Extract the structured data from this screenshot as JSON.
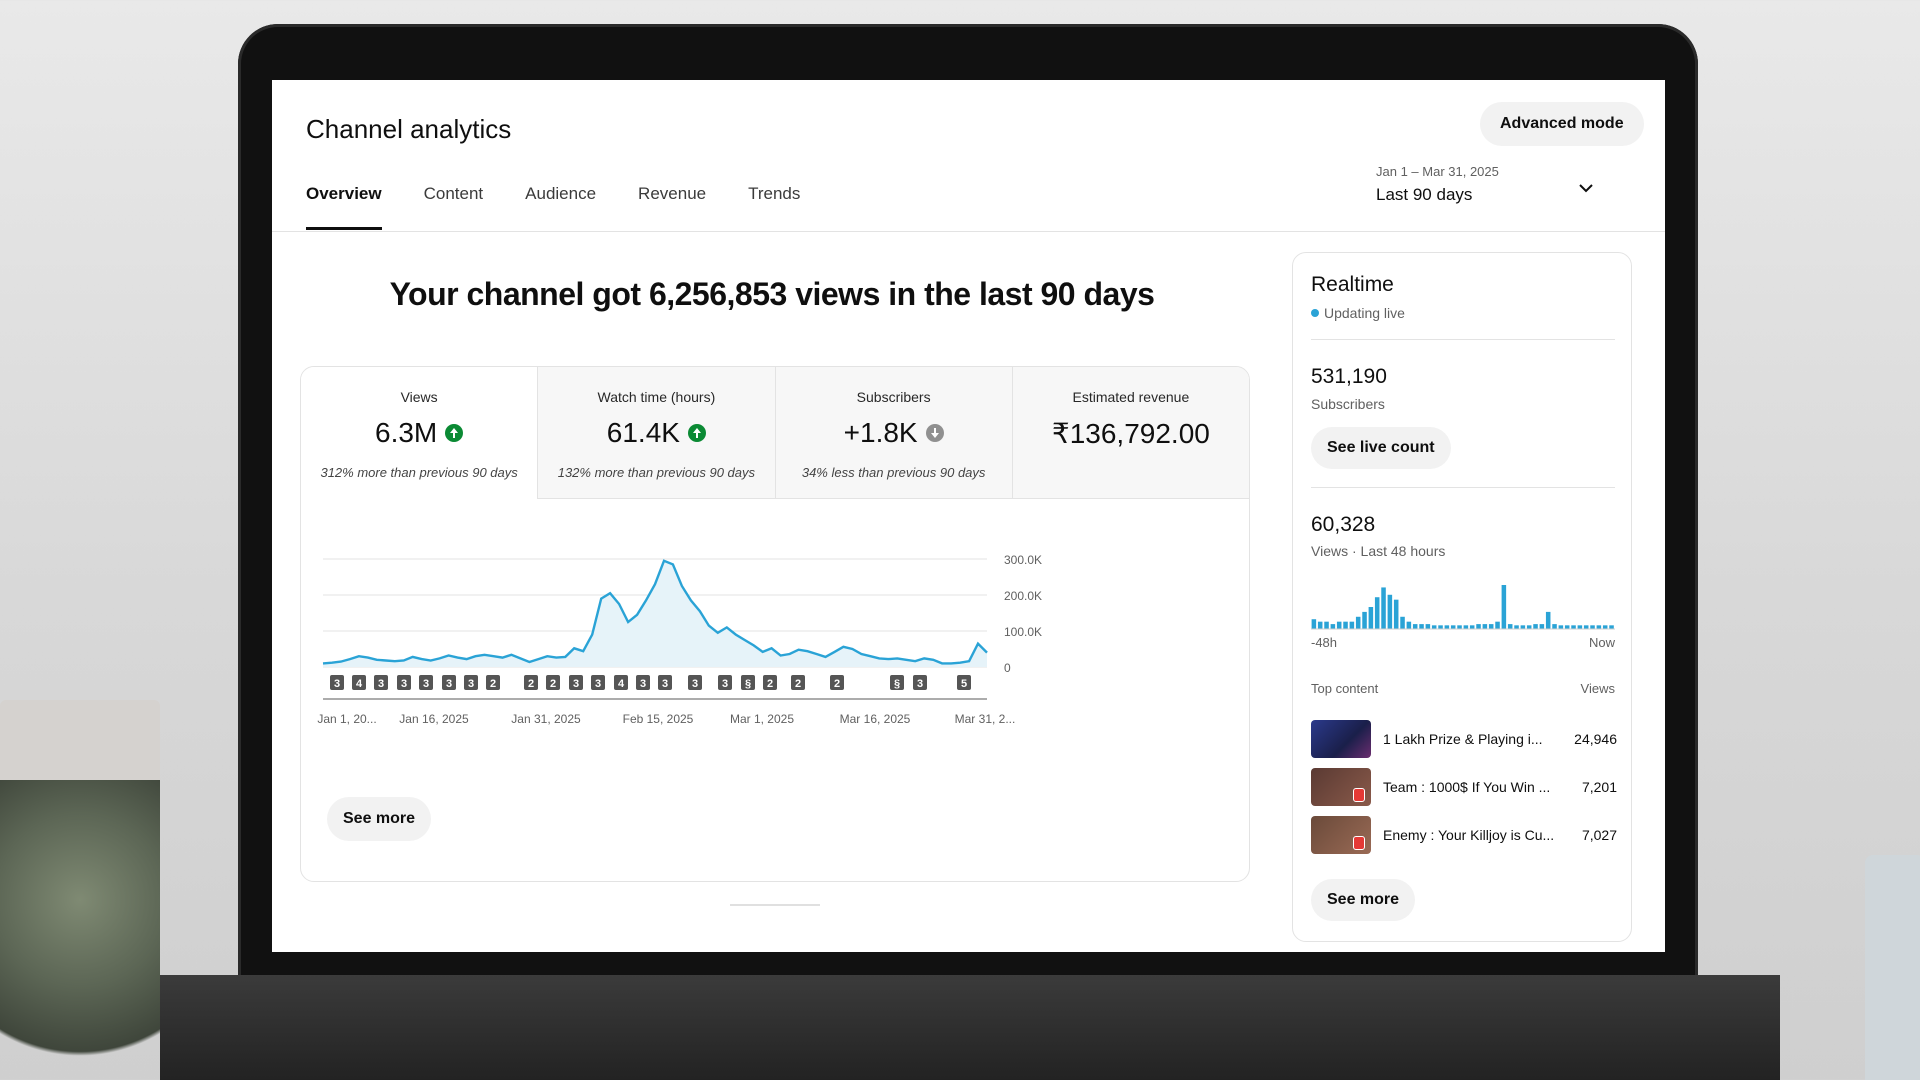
{
  "header": {
    "title": "Channel analytics",
    "advanced_mode": "Advanced mode",
    "tabs": [
      {
        "label": "Overview",
        "active": true
      },
      {
        "label": "Content",
        "active": false
      },
      {
        "label": "Audience",
        "active": false
      },
      {
        "label": "Revenue",
        "active": false
      },
      {
        "label": "Trends",
        "active": false
      }
    ],
    "date_range": "Jan 1 – Mar 31, 2025",
    "date_label": "Last 90 days"
  },
  "main": {
    "headline": "Your channel got 6,256,853 views in the last 90 days",
    "metrics": [
      {
        "label": "Views",
        "value": "6.3M",
        "trend": "up",
        "note": "312% more than previous 90 days"
      },
      {
        "label": "Watch time (hours)",
        "value": "61.4K",
        "trend": "up",
        "note": "132% more than previous 90 days"
      },
      {
        "label": "Subscribers",
        "value": "+1.8K",
        "trend": "down",
        "note": "34% less than previous 90 days"
      },
      {
        "label": "Estimated revenue",
        "value": "₹136,792.00",
        "trend": "",
        "note": ""
      }
    ],
    "see_more": "See more"
  },
  "chart_data": {
    "type": "area",
    "title": "",
    "xlabel": "",
    "ylabel": "",
    "ylim": [
      0,
      300000
    ],
    "yticks": [
      "300.0K",
      "200.0K",
      "100.0K",
      "0"
    ],
    "yticks_values": [
      300000,
      200000,
      100000,
      0
    ],
    "xtick_labels": [
      "Jan 1, 20...",
      "Jan 16, 2025",
      "Jan 31, 2025",
      "Feb 15, 2025",
      "Mar 1, 2025",
      "Mar 16, 2025",
      "Mar 31, 2..."
    ],
    "series": [
      {
        "values": [
          10000,
          12000,
          15000,
          22000,
          30000,
          26000,
          20000,
          18000,
          16000,
          18000,
          28000,
          22000,
          18000,
          24000,
          32000,
          26000,
          22000,
          30000,
          34000,
          30000,
          26000,
          34000,
          24000,
          14000,
          22000,
          30000,
          26000,
          28000,
          52000,
          44000,
          90000,
          190000,
          205000,
          175000,
          125000,
          145000,
          185000,
          230000,
          295000,
          285000,
          225000,
          185000,
          155000,
          115000,
          95000,
          110000,
          90000,
          75000,
          60000,
          42000,
          52000,
          32000,
          36000,
          48000,
          44000,
          36000,
          28000,
          42000,
          56000,
          50000,
          36000,
          30000,
          24000,
          22000,
          24000,
          20000,
          16000,
          24000,
          20000,
          10000,
          10000,
          12000,
          16000,
          65000,
          40000
        ]
      }
    ],
    "markers": [
      "3",
      "4",
      "3",
      "3",
      "3",
      "3",
      "3",
      "2",
      "2",
      "2",
      "3",
      "3",
      "4",
      "3",
      "3",
      "3",
      "3",
      "shorts",
      "2",
      "2",
      "2",
      "shorts",
      "3",
      "5"
    ],
    "line_color": "#2aa3d6",
    "grid": true
  },
  "realtime": {
    "title": "Realtime",
    "live_label": "Updating live",
    "subscribers": "531,190",
    "subscribers_label": "Subscribers",
    "live_count_button": "See live count",
    "views": "60,328",
    "views_label": "Views · Last 48 hours",
    "axis_left": "-48h",
    "axis_right": "Now",
    "bar_values": [
      8,
      6,
      6,
      4,
      6,
      6,
      6,
      10,
      14,
      18,
      26,
      34,
      28,
      24,
      10,
      6,
      4,
      4,
      4,
      3,
      3,
      3,
      3,
      3,
      3,
      3,
      4,
      4,
      4,
      6,
      36,
      4,
      3,
      3,
      3,
      4,
      4,
      14,
      4,
      3,
      3,
      3,
      3,
      3,
      3,
      3,
      3,
      3
    ],
    "bar_color": "#2aa3d6",
    "top_content_label": "Top content",
    "top_views_label": "Views",
    "top_content": [
      {
        "title": "1 Lakh Prize & Playing i...",
        "views": "24,946"
      },
      {
        "title": "Team : 1000$ If You Win ...",
        "views": "7,201"
      },
      {
        "title": "Enemy : Your Killjoy is Cu...",
        "views": "7,027"
      }
    ],
    "see_more": "See more"
  }
}
